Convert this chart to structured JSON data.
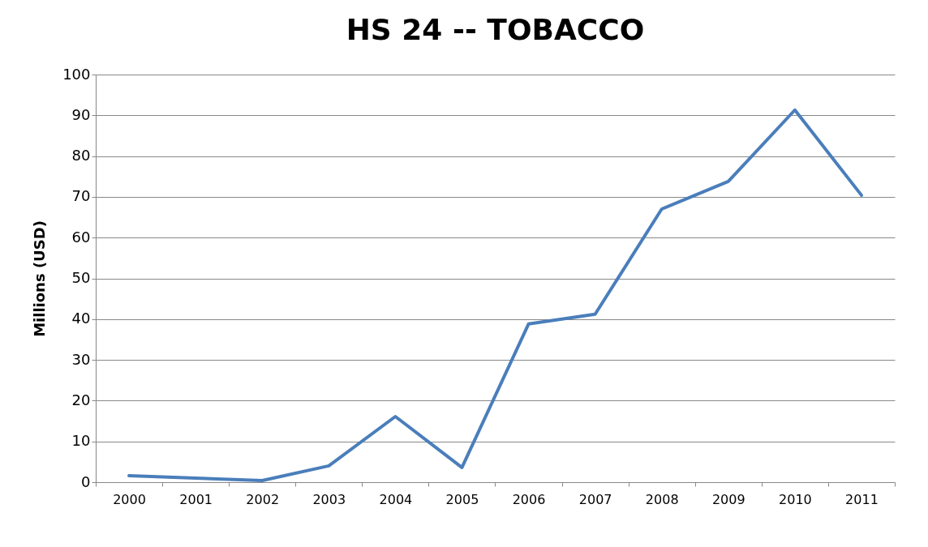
{
  "chart_data": {
    "type": "line",
    "title": "HS 24 -- TOBACCO",
    "ylabel": "Millions (USD)",
    "categories": [
      "2000",
      "2001",
      "2002",
      "2003",
      "2004",
      "2005",
      "2006",
      "2007",
      "2008",
      "2009",
      "2010",
      "2011"
    ],
    "series": [
      {
        "color": "#4a7ebb",
        "values": [
          1.6,
          1.0,
          0.4,
          4.0,
          16.1,
          3.6,
          38.8,
          41.2,
          67.0,
          73.8,
          91.3,
          70.4
        ]
      }
    ],
    "ylim": [
      0,
      100
    ],
    "yticks": [
      0,
      10,
      20,
      30,
      40,
      50,
      60,
      70,
      80,
      90,
      100
    ],
    "grid": "y",
    "legend": false,
    "marker": "none",
    "line_style": "solid"
  }
}
